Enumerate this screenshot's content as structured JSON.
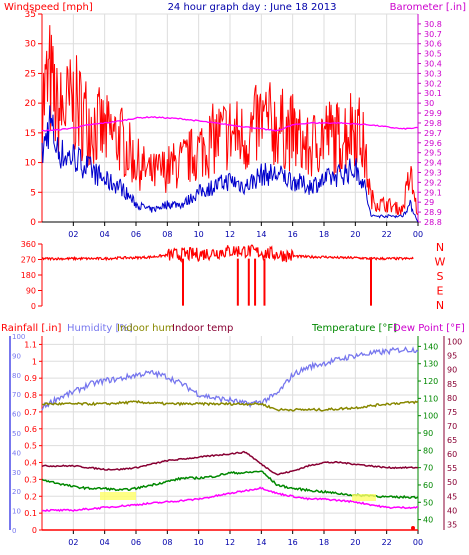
{
  "chart_data": [
    {
      "type": "line",
      "title": "24 hour graph day : June 18 2013",
      "left_axis_label": "Windspeed [mph]",
      "right_axis_label": "Barometer [.in]",
      "x_ticks": [
        "02",
        "04",
        "06",
        "08",
        "10",
        "12",
        "14",
        "16",
        "18",
        "20",
        "22",
        "00"
      ],
      "left_ylim": [
        0,
        35
      ],
      "left_ticks": [
        "0",
        "5",
        "10",
        "15",
        "20",
        "25",
        "30",
        "35"
      ],
      "right_ylim": [
        28.8,
        30.9
      ],
      "right_ticks": [
        "28.8",
        "28.9",
        "29",
        "29.1",
        "29.2",
        "29.3",
        "29.4",
        "29.5",
        "29.6",
        "29.7",
        "29.8",
        "29.9",
        "30",
        "30.1",
        "30.2",
        "30.3",
        "30.4",
        "30.5",
        "30.6",
        "30.7",
        "30.8"
      ],
      "grid": true,
      "colors": {
        "gust": "#ff0000",
        "avg": "#0000cc",
        "barometer": "#ff00ff",
        "axis_left": "#ff0000",
        "axis_right": "#cc00cc",
        "grid": "#dddddd"
      },
      "series": [
        {
          "role": "wind_gust",
          "x": [
            0,
            0.5,
            1,
            1.5,
            2,
            3,
            4,
            5,
            6,
            7,
            8,
            9,
            10,
            11,
            12,
            13,
            14,
            15,
            16,
            17,
            18,
            19,
            20,
            20.5,
            21,
            21.5,
            22,
            23,
            23.5,
            24
          ],
          "y": [
            20,
            24,
            18,
            19,
            20,
            17,
            15,
            14,
            10,
            8,
            9,
            10,
            12,
            14,
            15,
            14,
            17,
            16,
            15,
            12,
            15,
            14,
            17,
            13,
            4,
            3,
            3,
            2,
            8,
            1
          ]
        },
        {
          "role": "wind_avg",
          "x": [
            0,
            0.5,
            1,
            1.5,
            2,
            3,
            4,
            5,
            6,
            7,
            8,
            9,
            10,
            11,
            12,
            13,
            14,
            15,
            16,
            17,
            18,
            19,
            20,
            20.5,
            21,
            21.5,
            22,
            23,
            23.5,
            24
          ],
          "y": [
            11,
            17,
            12,
            11,
            11,
            9,
            7,
            6,
            3,
            2,
            3,
            3,
            5,
            6,
            7,
            6,
            8,
            8,
            7,
            6,
            7,
            8,
            9,
            7,
            1,
            1,
            1,
            1,
            3,
            0
          ]
        },
        {
          "role": "barometer",
          "x": [
            0,
            1,
            2,
            3,
            4,
            5,
            6,
            7,
            8,
            9,
            10,
            11,
            12,
            13,
            14,
            15,
            16,
            17,
            18,
            19,
            20,
            21,
            22,
            23,
            24
          ],
          "y": [
            29.72,
            29.73,
            29.75,
            29.78,
            29.8,
            29.82,
            29.85,
            29.86,
            29.85,
            29.84,
            29.82,
            29.8,
            29.78,
            29.76,
            29.74,
            29.72,
            29.78,
            29.8,
            29.8,
            29.8,
            29.79,
            29.78,
            29.76,
            29.74,
            29.75
          ]
        }
      ]
    },
    {
      "type": "scatter",
      "left_axis_label": "",
      "right_labels": [
        "N",
        "W",
        "S",
        "E",
        "N"
      ],
      "ylim": [
        0,
        360
      ],
      "y_ticks": [
        "0",
        "90",
        "180",
        "270",
        "360"
      ],
      "x_ticks": [],
      "series": [
        {
          "role": "wind_direction",
          "x": [
            0,
            1,
            2,
            3,
            4,
            5,
            6,
            7,
            8,
            9,
            10,
            11,
            12,
            13,
            14,
            15,
            16,
            17,
            18,
            19,
            20,
            21,
            22,
            23,
            23.7
          ],
          "y": [
            275,
            275,
            275,
            275,
            275,
            280,
            280,
            285,
            295,
            300,
            300,
            310,
            320,
            320,
            310,
            300,
            290,
            285,
            285,
            280,
            280,
            275,
            275,
            275,
            275
          ]
        }
      ],
      "spikes_x": [
        9,
        12.5,
        13.2,
        13.6,
        14.2,
        21
      ]
    },
    {
      "type": "line",
      "axis_labels": {
        "rainfall": "Rainfall [.in]",
        "humidity": "Humidity [%]",
        "indoor_hum": "Indoor hum",
        "indoor_temp": "Indoor temp",
        "temperature": "Temperature [°F]",
        "dew_point": "Dew Point [°F]"
      },
      "x_ticks": [
        "02",
        "04",
        "06",
        "08",
        "10",
        "12",
        "14",
        "16",
        "18",
        "20",
        "22",
        "00"
      ],
      "rainfall_ticks": [
        "0",
        "0.1",
        "0.2",
        "0.3",
        "0.4",
        "0.5",
        "0.6",
        "0.7",
        "0.8",
        "0.9",
        "1",
        "1.1"
      ],
      "humidity_ticks": [
        "0",
        "10",
        "20",
        "30",
        "40",
        "50",
        "60",
        "70",
        "80",
        "90",
        "100"
      ],
      "temp_ticks": [
        "40",
        "50",
        "60",
        "70",
        "80",
        "90",
        "100",
        "110",
        "120",
        "130",
        "140"
      ],
      "dew_ticks": [
        "35",
        "40",
        "45",
        "50",
        "55",
        "60",
        "65",
        "70",
        "75",
        "80",
        "85",
        "90",
        "95",
        "100"
      ],
      "rainfall_ylim": [
        0,
        1.15
      ],
      "humidity_ylim": [
        0,
        100
      ],
      "temp_ylim": [
        34,
        146
      ],
      "dew_ylim": [
        33,
        102
      ],
      "colors": {
        "rainfall": "#ff0000",
        "humidity": "#7777ee",
        "indoor_hum": "#888800",
        "indoor_temp": "#880033",
        "temperature": "#008800",
        "dew_point": "#ff00ff",
        "label_yellow": "#ffff66"
      },
      "series": [
        {
          "role": "humidity",
          "x": [
            0,
            1,
            2,
            3,
            4,
            5,
            6,
            7,
            8,
            9,
            10,
            11,
            12,
            13,
            14,
            15,
            16,
            17,
            18,
            19,
            20,
            21,
            22,
            23,
            24
          ],
          "y": [
            63,
            68,
            71,
            75,
            77,
            78,
            80,
            81,
            79,
            75,
            70,
            68,
            67,
            65,
            66,
            70,
            80,
            84,
            86,
            88,
            90,
            91,
            92,
            93,
            93
          ]
        },
        {
          "role": "indoor_temp",
          "x": [
            0,
            1,
            2,
            3,
            4,
            5,
            6,
            7,
            8,
            9,
            10,
            11,
            12,
            13,
            14,
            15,
            16,
            17,
            18,
            19,
            20,
            21,
            22,
            23,
            24
          ],
          "y": [
            71,
            71,
            71,
            70,
            69,
            69,
            70,
            72,
            74,
            75,
            76,
            77,
            78,
            79,
            72,
            66,
            68,
            71,
            73,
            73,
            72,
            71,
            70,
            70,
            70
          ]
        },
        {
          "role": "indoor_hum",
          "x": [
            0,
            2,
            4,
            6,
            8,
            10,
            12,
            14,
            15,
            16,
            18,
            20,
            22,
            24
          ],
          "y": [
            65,
            65,
            65,
            66,
            65,
            65,
            65,
            65,
            62,
            62,
            62,
            63,
            65,
            66
          ]
        },
        {
          "role": "temperature",
          "x": [
            0,
            1,
            2,
            3,
            4,
            5,
            6,
            7,
            8,
            9,
            10,
            11,
            12,
            13,
            14,
            15,
            16,
            17,
            18,
            19,
            20,
            21,
            22,
            23,
            24
          ],
          "y": [
            63,
            61,
            59,
            58,
            58,
            57,
            58,
            60,
            62,
            64,
            64,
            65,
            67,
            67,
            68,
            60,
            58,
            57,
            56,
            55,
            54,
            54,
            53,
            53,
            53
          ]
        },
        {
          "role": "dew_point",
          "x": [
            0,
            1,
            2,
            3,
            4,
            5,
            6,
            7,
            8,
            9,
            10,
            11,
            12,
            13,
            14,
            15,
            16,
            17,
            18,
            19,
            20,
            21,
            22,
            23,
            24
          ],
          "y": [
            40,
            40,
            40,
            40.5,
            41,
            41.5,
            42,
            42.5,
            43,
            43.5,
            44,
            45,
            46,
            47,
            48,
            46,
            45,
            44,
            44,
            43.5,
            43,
            42,
            41,
            41,
            41
          ]
        },
        {
          "role": "rainfall",
          "x": [
            0,
            24
          ],
          "y": [
            0,
            0
          ]
        }
      ]
    }
  ]
}
